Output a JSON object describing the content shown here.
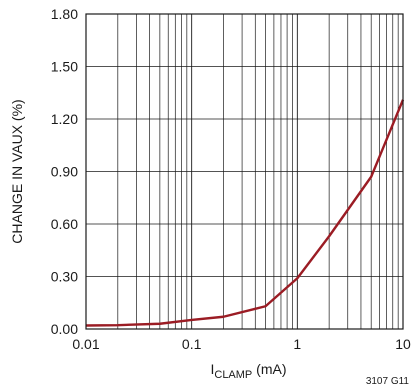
{
  "chart_data": {
    "type": "line",
    "x_scale": "log",
    "xlim": [
      0.01,
      10
    ],
    "ylim": [
      0,
      1.8
    ],
    "x_ticks": [
      0.01,
      0.1,
      1,
      10
    ],
    "x_tick_labels": [
      "0.01",
      "0.1",
      "1",
      "10"
    ],
    "y_ticks": [
      0,
      0.3,
      0.6,
      0.9,
      1.2,
      1.5,
      1.8
    ],
    "y_tick_labels": [
      "0.00",
      "0.30",
      "0.60",
      "0.90",
      "1.20",
      "1.50",
      "1.80"
    ],
    "ylabel": "CHANGE IN VAUX (%)",
    "xlabel": {
      "main": "I",
      "sub": "CLAMP",
      "unit": " (mA)"
    },
    "grid": true,
    "line_color": "#9b1c24",
    "series": [
      {
        "x": [
          0.01,
          0.02,
          0.05,
          0.1,
          0.2,
          0.5,
          1,
          2,
          5,
          10
        ],
        "y": [
          0.02,
          0.022,
          0.03,
          0.052,
          0.07,
          0.13,
          0.29,
          0.53,
          0.87,
          1.31
        ]
      }
    ]
  },
  "figure_id": "3107 G11"
}
